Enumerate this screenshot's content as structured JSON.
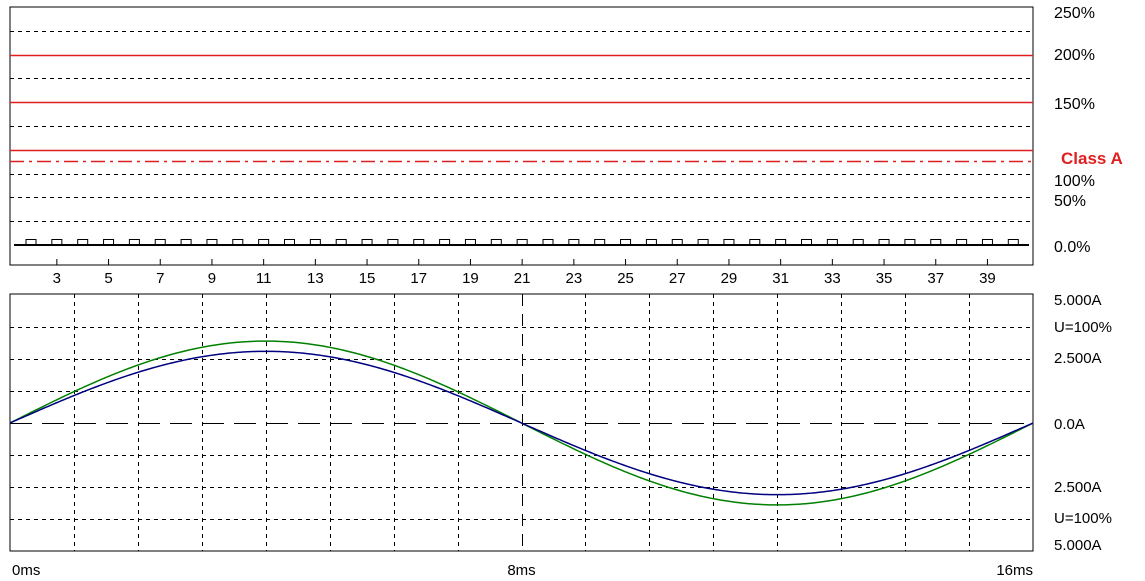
{
  "chart_data": [
    {
      "type": "bar",
      "title": "",
      "xlabel": "",
      "ylabel": "",
      "x_ticks": [
        "3",
        "5",
        "7",
        "9",
        "11",
        "13",
        "15",
        "17",
        "19",
        "21",
        "23",
        "25",
        "27",
        "29",
        "31",
        "33",
        "35",
        "37",
        "39"
      ],
      "y_ticks": [
        "250%",
        "200%",
        "150%",
        "100%",
        "50%",
        "0.0%"
      ],
      "ylim": [
        0,
        250
      ],
      "grid": true,
      "harmonics": [
        2,
        3,
        4,
        5,
        6,
        7,
        8,
        9,
        10,
        11,
        12,
        13,
        14,
        15,
        16,
        17,
        18,
        19,
        20,
        21,
        22,
        23,
        24,
        25,
        26,
        27,
        28,
        29,
        30,
        31,
        32,
        33,
        34,
        35,
        36,
        37,
        38,
        39,
        40
      ],
      "values": [
        0,
        0,
        0,
        0,
        0,
        0,
        0,
        0,
        0,
        0,
        0,
        0,
        0,
        0,
        0,
        0,
        0,
        0,
        0,
        0,
        0,
        0,
        0,
        0,
        0,
        0,
        0,
        0,
        0,
        0,
        0,
        0,
        0,
        0,
        0,
        0,
        0,
        0,
        0
      ],
      "limit_lines": [
        {
          "value": 200,
          "style": "solid",
          "color": "#e02020"
        },
        {
          "value": 150,
          "style": "solid",
          "color": "#e02020"
        },
        {
          "value": 100,
          "style": "solid",
          "color": "#e02020"
        },
        {
          "value": 88,
          "style": "dash-dot",
          "color": "#e02020"
        }
      ],
      "class_label": "Class A",
      "class_label_color": "#e02020"
    },
    {
      "type": "line",
      "title": "",
      "xlabel": "",
      "ylabel": "",
      "x_tick_labels": [
        "0ms",
        "8ms",
        "16ms"
      ],
      "y_tick_labels_right": [
        "5.000A",
        "U=100%",
        "2.500A",
        "0.0A",
        "2.500A",
        "U=100%",
        "5.000A"
      ],
      "xlim": [
        0,
        16
      ],
      "ylim": [
        -5,
        5
      ],
      "grid": true,
      "series": [
        {
          "color": "#008000",
          "amplitude": 3.2,
          "period_ms": 16
        },
        {
          "color": "#000080",
          "amplitude": 2.8,
          "period_ms": 16
        }
      ]
    }
  ]
}
